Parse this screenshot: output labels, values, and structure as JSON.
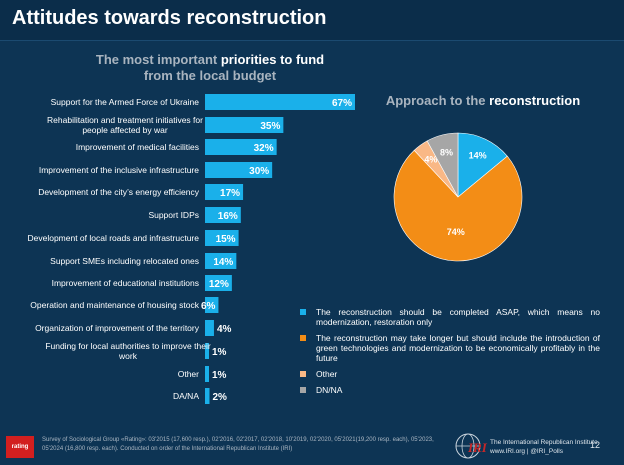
{
  "page": {
    "title": "Attitudes towards reconstruction",
    "page_number": "12"
  },
  "bar_heading": {
    "prefix": "The most important",
    "highlight": "priorities to fund",
    "line2": "from the local budget"
  },
  "pie_heading": {
    "prefix": "Approach to the",
    "highlight": "reconstruction"
  },
  "colors": {
    "bar": "#1ab0ea",
    "asap": "#1ab0ea",
    "green": "#f38d16",
    "other": "#f9b886",
    "dkna": "#a6a6a6",
    "background": "#0d3454"
  },
  "chart_data": [
    {
      "type": "bar",
      "orientation": "horizontal",
      "categories": [
        "Support for the Armed Force of Ukraine",
        "Rehabilitation and treatment initiatives for people affected by war",
        "Improvement of medical facilities",
        "Improvement of the inclusive infrastructure",
        "Development of the city’s energy efficiency",
        "Support IDPs",
        "Development of local roads and  infrastructure",
        "Support SMEs including relocated ones",
        "Improvement of educational institutions",
        "Operation and maintenance of housing stock",
        "Organization of improvement of the territory",
        "Funding for local authorities to improve their work",
        "Other",
        "DA/NA"
      ],
      "values": [
        67,
        35,
        32,
        30,
        17,
        16,
        15,
        14,
        12,
        6,
        4,
        1,
        1,
        2
      ],
      "data_labels": [
        "67%",
        "35%",
        "32%",
        "30%",
        "17%",
        "16%",
        "15%",
        "14%",
        "12%",
        "6%",
        "4%",
        "1%",
        "1%",
        "2%"
      ]
    },
    {
      "type": "pie",
      "slices": [
        {
          "label": "The reconstruction should be completed ASAP, which means no modernization, restoration only",
          "value": 14,
          "data_label": "14%",
          "color_key": "asap"
        },
        {
          "label": "The reconstruction may take longer but should include the introduction of green technologies and modernization to be economically profitably in the future",
          "value": 74,
          "data_label": "74%",
          "color_key": "green"
        },
        {
          "label": "Other",
          "value": 4,
          "data_label": "4%",
          "color_key": "other"
        },
        {
          "label": "DN/NA",
          "value": 8,
          "data_label": "8%",
          "color_key": "dkna"
        }
      ],
      "legend_position": "bottom-right"
    }
  ],
  "footer": {
    "logo_left": "rating",
    "source_text": "Survey of Sociological Group «Rating»: 03'2015 (17,600 resp.), 02'2016, 02'2017, 02'2018, 10'2019, 02'2020, 05'2021(19,200 resp. each), 05'2023, 05'2024 (16,800 resp. each).  Conducted on order of the International Republican Institute (IRI)",
    "iri_logo": "IRI",
    "iri_line1": "The International Republican Institute",
    "iri_line2": "www.IRI.org | @IRI_Polls"
  }
}
